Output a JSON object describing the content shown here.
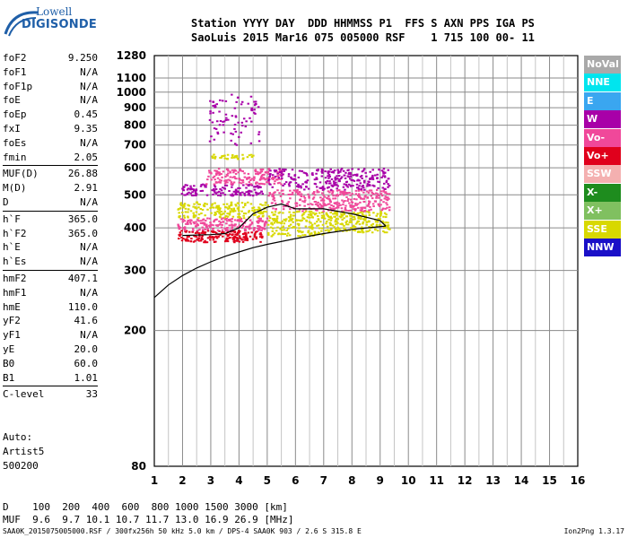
{
  "logo": {
    "line1": "Lowell",
    "line2": "DIGISONDE"
  },
  "header": {
    "line1": "Station YYYY DAY  DDD HHMMSS P1  FFS S AXN PPS IGA PS",
    "line2": "SaoLuis 2015 Mar16 075 005000 RSF    1 715 100 00- 11"
  },
  "params_groups": [
    [
      [
        "foF2",
        "9.250"
      ],
      [
        "foF1",
        "N/A"
      ],
      [
        "foF1p",
        "N/A"
      ],
      [
        "foE",
        "N/A"
      ],
      [
        "foEp",
        "0.45"
      ],
      [
        "fxI",
        "9.35"
      ],
      [
        "foEs",
        "N/A"
      ],
      [
        "fmin",
        "2.05"
      ]
    ],
    [
      [
        "MUF(D)",
        "26.88"
      ],
      [
        "M(D)",
        "2.91"
      ],
      [
        "D",
        "N/A"
      ]
    ],
    [
      [
        "h`F",
        "365.0"
      ],
      [
        "h`F2",
        "365.0"
      ],
      [
        "h`E",
        "N/A"
      ],
      [
        "h`Es",
        "N/A"
      ]
    ],
    [
      [
        "hmF2",
        "407.1"
      ],
      [
        "hmF1",
        "N/A"
      ],
      [
        "hmE",
        "110.0"
      ],
      [
        "yF2",
        "41.6"
      ],
      [
        "yF1",
        "N/A"
      ],
      [
        "yE",
        "20.0"
      ],
      [
        "B0",
        "60.0"
      ],
      [
        "B1",
        "1.01"
      ]
    ],
    [
      [
        "C-level",
        "33"
      ]
    ]
  ],
  "auto": {
    "line1": "Auto:",
    "line2": "Artist5",
    "line3": "500200"
  },
  "dmuf": {
    "d_line": "D    100  200  400  600  800 1000 1500 3000 [km]",
    "muf_line": "MUF  9.6  9.7 10.1 10.7 11.7 13.0 16.9 26.9 [MHz]"
  },
  "footer": "SAA0K_2015075005000.RSF / 300fx256h 50 kHz 5.0 km / DPS-4 SAA0K 903 / 2.6 S 315.8 E",
  "version": "Ion2Png 1.3.17",
  "legend": [
    {
      "label": "NoVal",
      "color": "#a9a9a9"
    },
    {
      "label": "NNE",
      "color": "#00e5ee"
    },
    {
      "label": "E",
      "color": "#3aa6f0"
    },
    {
      "label": "W",
      "color": "#a800a8"
    },
    {
      "label": "Vo-",
      "color": "#f0489a"
    },
    {
      "label": "Vo+",
      "color": "#e0001c"
    },
    {
      "label": "SSW",
      "color": "#f4b0b0"
    },
    {
      "label": "X-",
      "color": "#1e8c1e"
    },
    {
      "label": "X+",
      "color": "#80c060"
    },
    {
      "label": "SSE",
      "color": "#d8d800"
    },
    {
      "label": "NNW",
      "color": "#1a10c8"
    }
  ],
  "chart_data": {
    "type": "scatter",
    "title": "",
    "xlabel": "",
    "ylabel": "",
    "xlim": [
      1,
      16
    ],
    "ylim": [
      80,
      1280
    ],
    "y_scale": "log",
    "x_ticks": [
      1,
      2,
      3,
      4,
      5,
      6,
      7,
      8,
      9,
      10,
      11,
      12,
      13,
      14,
      15,
      16
    ],
    "x_tick_labels": [
      "1",
      "2",
      "3",
      "4",
      "5",
      "6",
      "7",
      "8",
      "9",
      "10",
      "11",
      "12",
      "13",
      "14",
      "15",
      "16"
    ],
    "y_ticks": [
      80,
      200,
      300,
      400,
      500,
      600,
      700,
      800,
      900,
      1000,
      1100,
      1280
    ],
    "y_tick_labels": [
      "80",
      "200",
      "300",
      "400",
      "500",
      "600",
      "700",
      "800",
      "900",
      "1000",
      "1100",
      "1280"
    ],
    "grid": true,
    "legend_position": "right",
    "echo_clusters": [
      {
        "x": [
          1.8,
          4.8
        ],
        "y": [
          365,
          395
        ],
        "color": "#e0001c",
        "density": 0.9
      },
      {
        "x": [
          1.8,
          5.0
        ],
        "y": [
          395,
          430
        ],
        "color": "#f0489a",
        "density": 0.8
      },
      {
        "x": [
          1.8,
          5.0
        ],
        "y": [
          430,
          480
        ],
        "color": "#d8d800",
        "density": 0.6
      },
      {
        "x": [
          1.9,
          4.8
        ],
        "y": [
          500,
          540
        ],
        "color": "#a800a8",
        "density": 0.7
      },
      {
        "x": [
          2.8,
          5.5
        ],
        "y": [
          540,
          600
        ],
        "color": "#f0489a",
        "density": 0.7
      },
      {
        "x": [
          3.0,
          4.5
        ],
        "y": [
          640,
          660
        ],
        "color": "#d8d800",
        "density": 0.9
      },
      {
        "x": [
          2.9,
          4.7
        ],
        "y": [
          700,
          990
        ],
        "color": "#a800a8",
        "density": 0.15
      },
      {
        "x": [
          5.0,
          7.0
        ],
        "y": [
          380,
          450
        ],
        "color": "#d8d800",
        "density": 0.6
      },
      {
        "x": [
          5.0,
          7.0
        ],
        "y": [
          450,
          520
        ],
        "color": "#f0489a",
        "density": 0.5
      },
      {
        "x": [
          5.0,
          7.0
        ],
        "y": [
          520,
          600
        ],
        "color": "#a800a8",
        "density": 0.4
      },
      {
        "x": [
          7.0,
          9.3
        ],
        "y": [
          390,
          450
        ],
        "color": "#d8d800",
        "density": 0.7
      },
      {
        "x": [
          7.0,
          9.3
        ],
        "y": [
          450,
          520
        ],
        "color": "#f0489a",
        "density": 0.7
      },
      {
        "x": [
          7.0,
          9.3
        ],
        "y": [
          520,
          600
        ],
        "color": "#a800a8",
        "density": 0.6
      }
    ],
    "series": [
      {
        "x": [
          1,
          1.5,
          2,
          2.5,
          3,
          3.5,
          4,
          4.5,
          5,
          6,
          7,
          8,
          9.2
        ],
        "y": [
          250,
          272,
          290,
          305,
          318,
          330,
          340,
          350,
          358,
          372,
          385,
          396,
          405
        ]
      },
      {
        "x": [
          2,
          3,
          3.5,
          4,
          4.5,
          5,
          5.5,
          6,
          6.5,
          7,
          8,
          9,
          9.2
        ],
        "y": [
          380,
          382,
          385,
          400,
          440,
          460,
          470,
          455,
          455,
          455,
          440,
          420,
          405
        ]
      }
    ]
  }
}
